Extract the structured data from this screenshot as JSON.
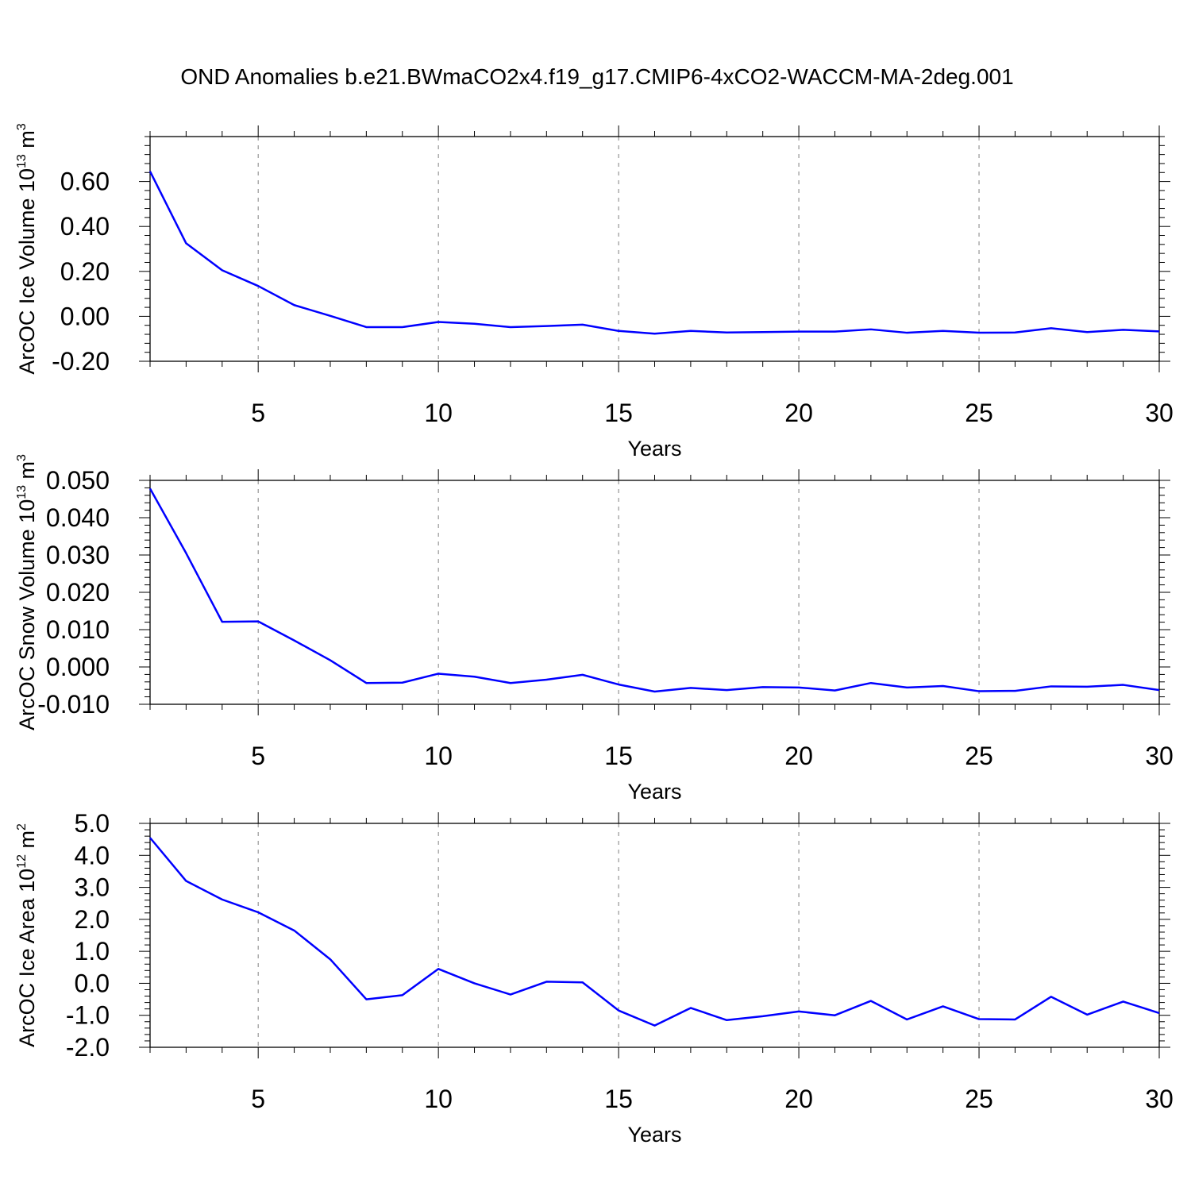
{
  "title": "OND Anomalies b.e21.BWmaCO2x4.f19_g17.CMIP6-4xCO2-WACCM-MA-2deg.001",
  "colors": {
    "line": "#0000ff",
    "axis": "#000000",
    "grid": "#808080"
  },
  "chart_data": [
    {
      "type": "line",
      "xlabel": "Years",
      "ylabel_main": "ArcOC Ice Volume 10",
      "ylabel_exp": "13",
      "ylabel_unit": " m",
      "ylabel_unit_exp": "3",
      "xlim": [
        2,
        30
      ],
      "ylim": [
        -0.2,
        0.8
      ],
      "xticks": [
        5,
        10,
        15,
        20,
        25,
        30
      ],
      "xtick_labels": [
        "5",
        "10",
        "15",
        "20",
        "25",
        "30"
      ],
      "yticks": [
        -0.2,
        0.0,
        0.2,
        0.4,
        0.6
      ],
      "ytick_labels": [
        "-0.20",
        "0.00",
        "0.20",
        "0.40",
        "0.60"
      ],
      "yminor": 0.04,
      "x": [
        2,
        3,
        4,
        5,
        6,
        7,
        8,
        9,
        10,
        11,
        12,
        13,
        14,
        15,
        16,
        17,
        18,
        19,
        20,
        21,
        22,
        23,
        24,
        25,
        26,
        27,
        28,
        29,
        30
      ],
      "values": [
        0.645,
        0.325,
        0.205,
        0.135,
        0.05,
        0.002,
        -0.048,
        -0.048,
        -0.025,
        -0.033,
        -0.048,
        -0.043,
        -0.037,
        -0.065,
        -0.077,
        -0.065,
        -0.072,
        -0.07,
        -0.068,
        -0.068,
        -0.058,
        -0.073,
        -0.065,
        -0.073,
        -0.072,
        -0.053,
        -0.07,
        -0.06,
        -0.067
      ],
      "grid": "vertical dashed at major x ticks"
    },
    {
      "type": "line",
      "xlabel": "Years",
      "ylabel_main": "ArcOC Snow Volume 10",
      "ylabel_exp": "13",
      "ylabel_unit": " m",
      "ylabel_unit_exp": "3",
      "xlim": [
        2,
        30
      ],
      "ylim": [
        -0.01,
        0.05
      ],
      "xticks": [
        5,
        10,
        15,
        20,
        25,
        30
      ],
      "xtick_labels": [
        "5",
        "10",
        "15",
        "20",
        "25",
        "30"
      ],
      "yticks": [
        -0.01,
        0.0,
        0.01,
        0.02,
        0.03,
        0.04,
        0.05
      ],
      "ytick_labels": [
        "-0.010",
        "0.000",
        "0.010",
        "0.020",
        "0.030",
        "0.040",
        "0.050"
      ],
      "yminor": 0.002,
      "x": [
        2,
        3,
        4,
        5,
        6,
        7,
        8,
        9,
        10,
        11,
        12,
        13,
        14,
        15,
        16,
        17,
        18,
        19,
        20,
        21,
        22,
        23,
        24,
        25,
        26,
        27,
        28,
        29,
        30
      ],
      "values": [
        0.0478,
        0.0305,
        0.0121,
        0.0122,
        0.0071,
        0.0018,
        -0.0043,
        -0.0042,
        -0.0018,
        -0.0026,
        -0.0043,
        -0.0034,
        -0.0021,
        -0.0047,
        -0.0066,
        -0.0056,
        -0.0062,
        -0.0054,
        -0.0055,
        -0.0063,
        -0.0043,
        -0.0055,
        -0.0051,
        -0.0065,
        -0.0064,
        -0.0052,
        -0.0053,
        -0.0048,
        -0.0062
      ],
      "grid": "vertical dashed at major x ticks"
    },
    {
      "type": "line",
      "xlabel": "Years",
      "ylabel_main": "ArcOC Ice Area 10",
      "ylabel_exp": "12",
      "ylabel_unit": " m",
      "ylabel_unit_exp": "2",
      "xlim": [
        2,
        30
      ],
      "ylim": [
        -2.0,
        5.0
      ],
      "xticks": [
        5,
        10,
        15,
        20,
        25,
        30
      ],
      "xtick_labels": [
        "5",
        "10",
        "15",
        "20",
        "25",
        "30"
      ],
      "yticks": [
        -2.0,
        -1.0,
        0.0,
        1.0,
        2.0,
        3.0,
        4.0,
        5.0
      ],
      "ytick_labels": [
        "-2.0",
        "-1.0",
        "0.0",
        "1.0",
        "2.0",
        "3.0",
        "4.0",
        "5.0"
      ],
      "yminor": 0.2,
      "x": [
        2,
        3,
        4,
        5,
        6,
        7,
        8,
        9,
        10,
        11,
        12,
        13,
        14,
        15,
        16,
        17,
        18,
        19,
        20,
        21,
        22,
        23,
        24,
        25,
        26,
        27,
        28,
        29,
        30
      ],
      "values": [
        4.55,
        3.2,
        2.62,
        2.22,
        1.65,
        0.75,
        -0.5,
        -0.37,
        0.45,
        0.0,
        -0.35,
        0.05,
        0.03,
        -0.85,
        -1.32,
        -0.77,
        -1.15,
        -1.03,
        -0.88,
        -1.0,
        -0.55,
        -1.13,
        -0.72,
        -1.12,
        -1.13,
        -0.42,
        -0.98,
        -0.57,
        -0.93
      ],
      "grid": "vertical dashed at major x ticks"
    }
  ]
}
